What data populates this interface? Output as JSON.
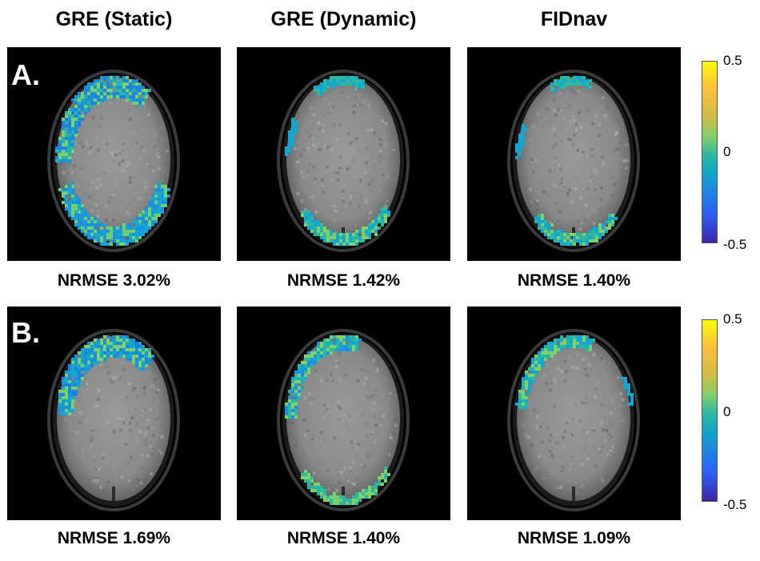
{
  "columns": [
    {
      "title": "GRE (Static)"
    },
    {
      "title": "GRE (Dynamic)"
    },
    {
      "title": "FIDnav"
    }
  ],
  "rows": [
    {
      "label": "A.",
      "nrmse": [
        "NRMSE 3.02%",
        "NRMSE 1.42%",
        "NRMSE 1.40%"
      ]
    },
    {
      "label": "B.",
      "nrmse": [
        "NRMSE 1.69%",
        "NRMSE 1.40%",
        "NRMSE 1.09%"
      ]
    }
  ],
  "colorbar": {
    "ticks": [
      "0.5",
      "0",
      "-0.5"
    ],
    "colormap": [
      "#3d26a8",
      "#2a62f5",
      "#1f86e3",
      "#10a4c9",
      "#2cb7a0",
      "#7fcf6e",
      "#d3bb45",
      "#fcbf3c",
      "#f8fa0d"
    ]
  }
}
